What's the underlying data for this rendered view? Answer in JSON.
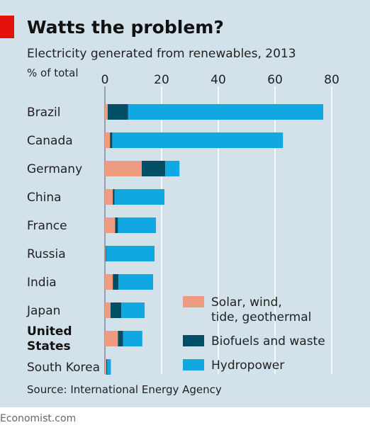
{
  "header": {
    "title": "Watts the problem?",
    "subtitle": "Electricity generated from renewables, 2013",
    "unit": "% of total"
  },
  "footer": {
    "source": "Source: International Energy Agency",
    "credit": "Economist.com"
  },
  "colors": {
    "background": "#d2e1ea",
    "accent": "#e3120b",
    "solar": "#ee9b80",
    "biofuels": "#004d66",
    "hydro": "#11a8e1",
    "grid": "#ffffff"
  },
  "chart_data": {
    "type": "bar",
    "orientation": "horizontal",
    "stacked": true,
    "categories": [
      "Brazil",
      "Canada",
      "Germany",
      "China",
      "France",
      "Russia",
      "India",
      "Japan",
      "United States",
      "South Korea"
    ],
    "highlight_category": "United States",
    "series": [
      {
        "name": "Solar, wind, tide, geothermal",
        "color": "#ee9b80",
        "values": [
          1.0,
          1.8,
          13.0,
          2.8,
          3.6,
          0.2,
          2.8,
          2.0,
          4.6,
          0.5
        ]
      },
      {
        "name": "Biofuels and waste",
        "color": "#004d66",
        "values": [
          7.2,
          0.8,
          8.3,
          0.6,
          1.0,
          0.2,
          2.0,
          3.8,
          1.8,
          0.3
        ]
      },
      {
        "name": "Hydropower",
        "color": "#11a8e1",
        "values": [
          68.8,
          60.2,
          5.0,
          17.6,
          13.4,
          17.1,
          12.2,
          8.2,
          6.8,
          1.3
        ]
      }
    ],
    "xlim": [
      0,
      80
    ],
    "xticks": [
      0,
      20,
      40,
      60,
      80
    ],
    "grid": true,
    "legend": {
      "position": "bottom-right",
      "entries": [
        {
          "lines": [
            "Solar, wind,",
            "tide, geothermal"
          ],
          "color": "#ee9b80"
        },
        {
          "lines": [
            "Biofuels and waste"
          ],
          "color": "#004d66"
        },
        {
          "lines": [
            "Hydropower"
          ],
          "color": "#11a8e1"
        }
      ]
    }
  }
}
